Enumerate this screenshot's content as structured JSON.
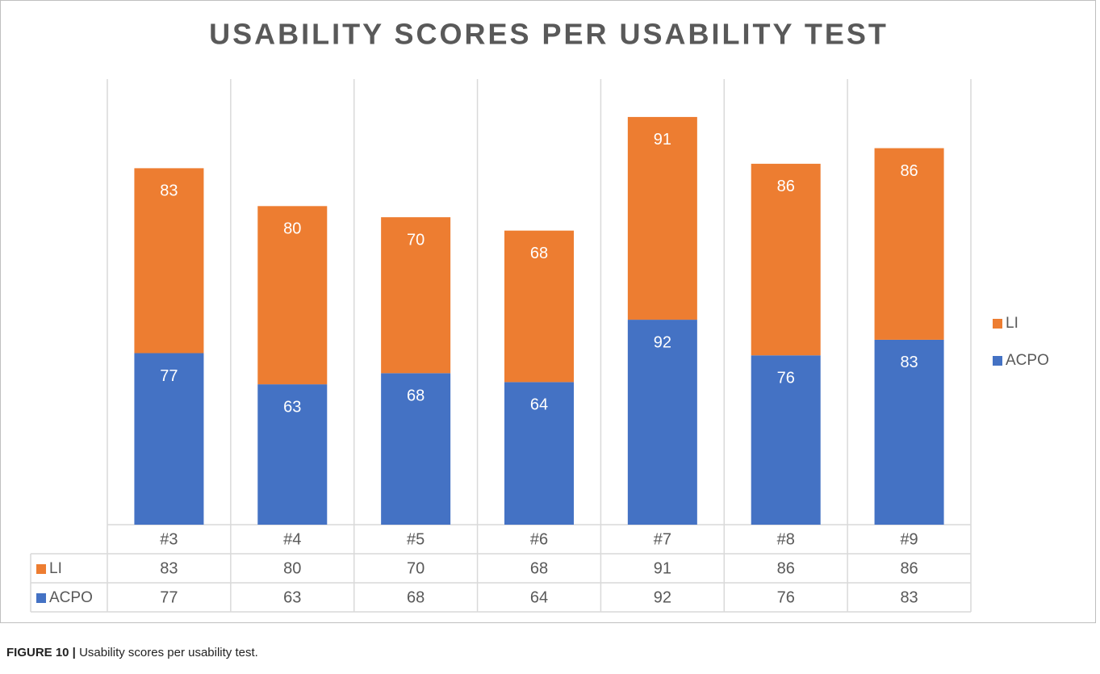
{
  "chart_data": {
    "type": "stacked_bar",
    "title": "USABILITY SCORES PER USABILITY TEST",
    "categories": [
      "#3",
      "#4",
      "#5",
      "#6",
      "#7",
      "#8",
      "#9"
    ],
    "series": [
      {
        "name": "LI",
        "color": "#ed7d31",
        "values": [
          83,
          80,
          70,
          68,
          91,
          86,
          86
        ]
      },
      {
        "name": "ACPO",
        "color": "#4472c4",
        "values": [
          77,
          63,
          68,
          64,
          92,
          76,
          83
        ]
      }
    ],
    "ylim": [
      0,
      200
    ],
    "legend": "right",
    "data_table": true
  },
  "caption_label": "FIGURE 10 |",
  "caption": "Usability scores per usability test."
}
